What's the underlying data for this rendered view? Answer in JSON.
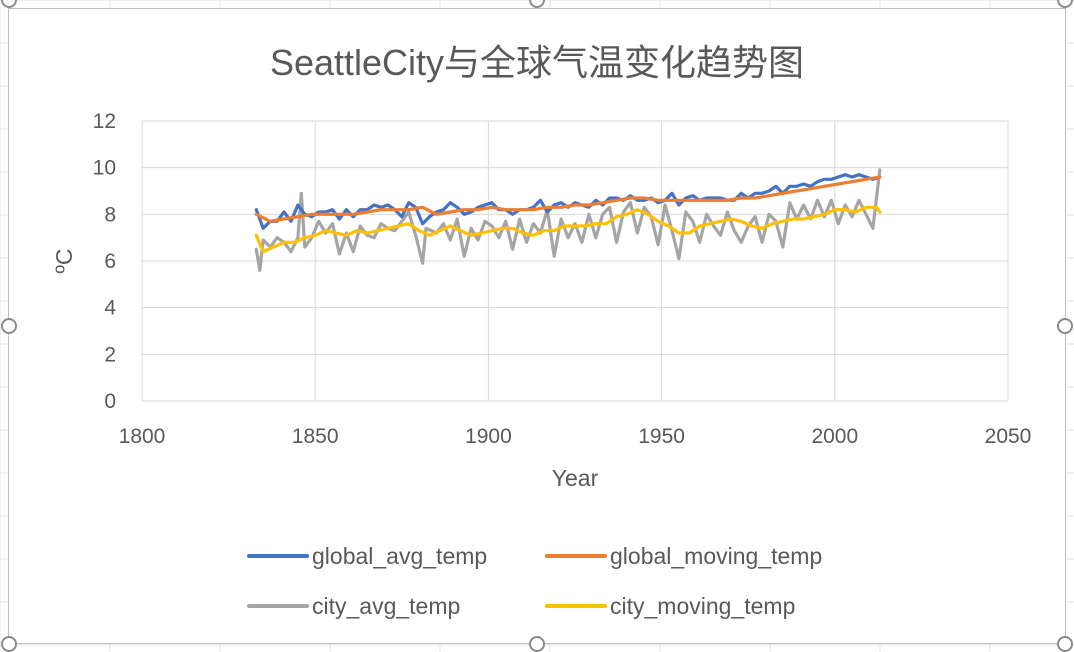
{
  "chart_data": {
    "type": "line",
    "title": "SeattleCity与全球气温变化趋势图",
    "xlabel": "Year",
    "ylabel": "ºC",
    "xlim": [
      1800,
      2050
    ],
    "ylim": [
      0,
      12
    ],
    "x_ticks": [
      1800,
      1850,
      1900,
      1950,
      2000,
      2050
    ],
    "y_ticks": [
      0,
      2,
      4,
      6,
      8,
      10,
      12
    ],
    "grid": true,
    "legend_position": "bottom",
    "series": [
      {
        "name": "global_avg_temp",
        "color": "#4472C4",
        "x": [
          1833,
          1835,
          1837,
          1839,
          1841,
          1843,
          1845,
          1847,
          1849,
          1851,
          1853,
          1855,
          1857,
          1859,
          1861,
          1863,
          1865,
          1867,
          1869,
          1871,
          1873,
          1875,
          1877,
          1879,
          1881,
          1883,
          1885,
          1887,
          1889,
          1891,
          1893,
          1895,
          1897,
          1899,
          1901,
          1903,
          1905,
          1907,
          1909,
          1911,
          1913,
          1915,
          1917,
          1919,
          1921,
          1923,
          1925,
          1927,
          1929,
          1931,
          1933,
          1935,
          1937,
          1939,
          1941,
          1943,
          1945,
          1947,
          1949,
          1951,
          1953,
          1955,
          1957,
          1959,
          1961,
          1963,
          1965,
          1967,
          1969,
          1971,
          1973,
          1975,
          1977,
          1979,
          1981,
          1983,
          1985,
          1987,
          1989,
          1991,
          1993,
          1995,
          1997,
          1999,
          2001,
          2003,
          2005,
          2007,
          2009,
          2011,
          2013
        ],
        "y": [
          8.2,
          7.4,
          7.7,
          7.7,
          8.1,
          7.7,
          8.4,
          8.0,
          7.9,
          8.1,
          8.1,
          8.2,
          7.8,
          8.2,
          7.9,
          8.2,
          8.2,
          8.4,
          8.3,
          8.4,
          8.2,
          7.9,
          8.5,
          8.3,
          7.6,
          7.9,
          8.1,
          8.2,
          8.5,
          8.3,
          8.0,
          8.1,
          8.3,
          8.4,
          8.5,
          8.2,
          8.2,
          8.0,
          8.2,
          8.2,
          8.3,
          8.6,
          8.1,
          8.4,
          8.5,
          8.3,
          8.5,
          8.4,
          8.3,
          8.6,
          8.4,
          8.7,
          8.7,
          8.6,
          8.8,
          8.6,
          8.6,
          8.7,
          8.5,
          8.6,
          8.9,
          8.4,
          8.7,
          8.8,
          8.6,
          8.7,
          8.7,
          8.7,
          8.6,
          8.6,
          8.9,
          8.7,
          8.9,
          8.9,
          9.0,
          9.2,
          8.9,
          9.2,
          9.2,
          9.3,
          9.2,
          9.4,
          9.5,
          9.5,
          9.6,
          9.7,
          9.6,
          9.7,
          9.6,
          9.5,
          9.6
        ]
      },
      {
        "name": "global_moving_temp",
        "color": "#ED7D31",
        "x": [
          1833,
          1837,
          1841,
          1845,
          1849,
          1853,
          1857,
          1861,
          1865,
          1869,
          1873,
          1877,
          1881,
          1885,
          1889,
          1893,
          1897,
          1901,
          1905,
          1909,
          1913,
          1917,
          1921,
          1925,
          1929,
          1933,
          1937,
          1941,
          1945,
          1949,
          1953,
          1957,
          1961,
          1965,
          1969,
          1973,
          1977,
          1981,
          1985,
          1989,
          1993,
          1997,
          2001,
          2005,
          2009,
          2013
        ],
        "y": [
          8.0,
          7.7,
          7.8,
          7.9,
          8.0,
          8.0,
          8.0,
          8.0,
          8.1,
          8.2,
          8.2,
          8.2,
          8.3,
          8.0,
          8.1,
          8.2,
          8.2,
          8.3,
          8.2,
          8.2,
          8.2,
          8.3,
          8.3,
          8.4,
          8.4,
          8.5,
          8.6,
          8.7,
          8.7,
          8.6,
          8.6,
          8.6,
          8.6,
          8.6,
          8.6,
          8.7,
          8.7,
          8.8,
          8.9,
          9.0,
          9.1,
          9.2,
          9.3,
          9.4,
          9.5,
          9.6
        ]
      },
      {
        "name": "city_avg_temp",
        "color": "#A5A5A5",
        "x": [
          1833,
          1834,
          1835,
          1837,
          1839,
          1841,
          1843,
          1845,
          1846,
          1847,
          1849,
          1851,
          1853,
          1855,
          1857,
          1859,
          1861,
          1863,
          1865,
          1867,
          1869,
          1871,
          1873,
          1875,
          1877,
          1879,
          1881,
          1882,
          1885,
          1887,
          1889,
          1891,
          1893,
          1895,
          1897,
          1899,
          1901,
          1903,
          1905,
          1907,
          1909,
          1911,
          1913,
          1915,
          1917,
          1919,
          1921,
          1923,
          1925,
          1927,
          1929,
          1931,
          1933,
          1935,
          1937,
          1939,
          1941,
          1943,
          1945,
          1947,
          1949,
          1951,
          1953,
          1955,
          1957,
          1959,
          1961,
          1963,
          1965,
          1967,
          1969,
          1971,
          1973,
          1975,
          1977,
          1979,
          1981,
          1983,
          1985,
          1987,
          1989,
          1991,
          1993,
          1995,
          1997,
          1999,
          2001,
          2003,
          2005,
          2007,
          2009,
          2011,
          2013
        ],
        "y": [
          6.5,
          5.6,
          6.9,
          6.6,
          7.0,
          6.8,
          6.4,
          7.0,
          8.9,
          6.6,
          7.0,
          7.7,
          7.2,
          7.6,
          6.3,
          7.2,
          6.4,
          7.5,
          7.1,
          7.0,
          7.6,
          7.4,
          7.3,
          7.7,
          8.1,
          7.1,
          5.9,
          7.4,
          7.2,
          7.6,
          6.9,
          7.8,
          6.2,
          7.4,
          6.9,
          7.7,
          7.5,
          7.0,
          7.7,
          6.5,
          7.8,
          6.8,
          7.6,
          7.2,
          8.2,
          6.2,
          7.8,
          7.0,
          7.6,
          6.8,
          8.0,
          7.0,
          8.0,
          8.3,
          6.8,
          8.1,
          8.5,
          7.2,
          8.3,
          7.9,
          6.7,
          8.4,
          7.3,
          6.1,
          8.1,
          7.7,
          6.8,
          8.0,
          7.5,
          7.1,
          8.1,
          7.3,
          6.8,
          7.5,
          7.9,
          6.8,
          8.0,
          7.7,
          6.6,
          8.5,
          7.8,
          8.4,
          7.8,
          8.6,
          7.9,
          8.6,
          7.6,
          8.4,
          7.9,
          8.6,
          8.0,
          7.4,
          9.9
        ]
      },
      {
        "name": "city_moving_temp",
        "color": "#FFC000",
        "x": [
          1833,
          1835,
          1838,
          1841,
          1844,
          1847,
          1850,
          1853,
          1856,
          1859,
          1862,
          1865,
          1868,
          1871,
          1874,
          1877,
          1880,
          1883,
          1886,
          1889,
          1892,
          1895,
          1898,
          1901,
          1904,
          1907,
          1910,
          1913,
          1916,
          1919,
          1922,
          1925,
          1928,
          1931,
          1934,
          1937,
          1940,
          1943,
          1946,
          1949,
          1952,
          1955,
          1958,
          1961,
          1964,
          1967,
          1970,
          1973,
          1976,
          1979,
          1982,
          1985,
          1988,
          1991,
          1994,
          1997,
          2000,
          2003,
          2006,
          2009,
          2012,
          2013
        ],
        "y": [
          7.1,
          6.4,
          6.6,
          6.8,
          6.8,
          7.0,
          7.1,
          7.3,
          7.2,
          7.1,
          7.3,
          7.2,
          7.3,
          7.4,
          7.5,
          7.6,
          7.3,
          7.1,
          7.3,
          7.5,
          7.3,
          7.1,
          7.2,
          7.3,
          7.4,
          7.4,
          7.2,
          7.1,
          7.3,
          7.3,
          7.5,
          7.5,
          7.5,
          7.6,
          7.6,
          7.9,
          8.0,
          8.2,
          8.0,
          7.7,
          7.5,
          7.2,
          7.2,
          7.5,
          7.6,
          7.7,
          7.8,
          7.7,
          7.5,
          7.4,
          7.6,
          7.7,
          7.8,
          7.8,
          7.9,
          8.0,
          8.2,
          8.2,
          8.1,
          8.3,
          8.3,
          8.1
        ]
      }
    ]
  }
}
